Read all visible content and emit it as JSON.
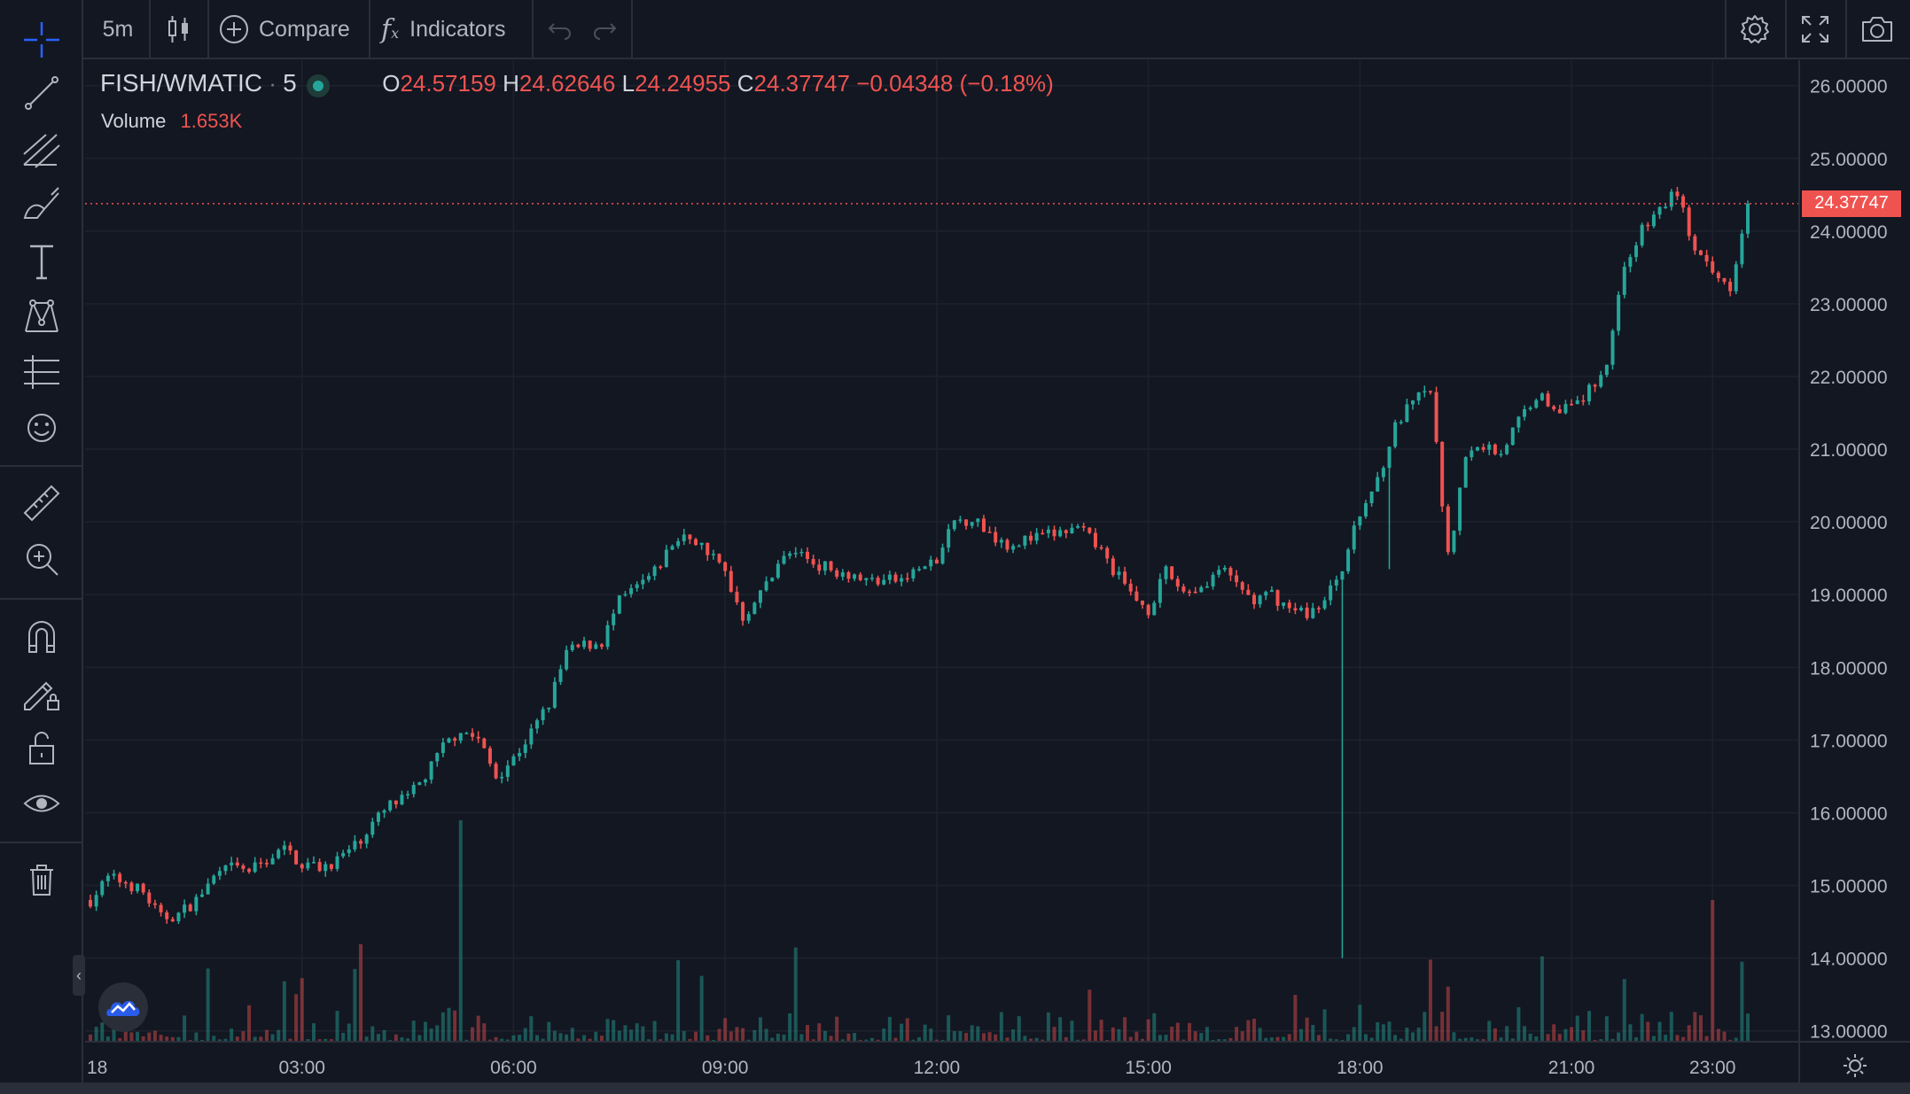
{
  "toolbar": {
    "interval": "5m",
    "compare_label": "Compare",
    "indicators_label": "Indicators"
  },
  "legend": {
    "symbol": "FISH/WMATIC",
    "separator": "·",
    "interval": "5",
    "open_prefix": "O",
    "open": "24.57159",
    "high_prefix": "H",
    "high": "24.62646",
    "low_prefix": "L",
    "low": "24.24955",
    "close_prefix": "C",
    "close": "24.37747",
    "change": "−0.04348 (−0.18%)",
    "volume_label": "Volume",
    "volume": "1.653K"
  },
  "price_axis": {
    "current_label": "24.37747",
    "current_value": 24.37747
  },
  "colors": {
    "up": "#26a69a",
    "down": "#ef5350",
    "background": "#131722",
    "grid": "#1e222d",
    "text": "#b2b5be"
  },
  "chart_data": {
    "type": "candlestick",
    "symbol": "FISH/WMATIC",
    "interval": "5m",
    "ylim": [
      12.85,
      26.35
    ],
    "y_ticks": [
      13,
      14,
      15,
      16,
      17,
      18,
      19,
      20,
      21,
      22,
      23,
      24,
      25,
      26
    ],
    "y_tick_labels": [
      "13.00000",
      "14.00000",
      "15.00000",
      "16.00000",
      "17.00000",
      "18.00000",
      "19.00000",
      "20.00000",
      "21.00000",
      "22.00000",
      "23.00000",
      "24.00000",
      "25.00000",
      "26.00000"
    ],
    "x_tick_labels": [
      "18",
      "03:00",
      "06:00",
      "09:00",
      "12:00",
      "15:00",
      "18:00",
      "21:00",
      "23:00"
    ],
    "x_tick_hours": [
      0,
      3,
      6,
      9,
      12,
      15,
      18,
      21,
      23
    ],
    "x_hour_range": [
      0,
      23.55
    ],
    "grid": true,
    "current_price": 24.37747,
    "price_points_hours": [
      0,
      0.25,
      0.5,
      0.75,
      1.0,
      1.25,
      1.5,
      1.75,
      2.0,
      2.25,
      2.5,
      2.75,
      3.0,
      3.25,
      3.5,
      3.75,
      4.0,
      4.25,
      4.5,
      4.75,
      5.0,
      5.25,
      5.5,
      5.75,
      6.0,
      6.25,
      6.5,
      6.75,
      7.0,
      7.25,
      7.5,
      7.75,
      8.0,
      8.25,
      8.5,
      8.75,
      9.0,
      9.25,
      9.5,
      9.75,
      10.0,
      10.25,
      10.5,
      10.75,
      11.0,
      11.25,
      11.5,
      11.75,
      12.0,
      12.25,
      12.5,
      12.75,
      13.0,
      13.25,
      13.5,
      13.75,
      14.0,
      14.25,
      14.5,
      14.75,
      15.0,
      15.25,
      15.5,
      15.75,
      16.0,
      16.25,
      16.5,
      16.75,
      17.0,
      17.25,
      17.5,
      17.75,
      18.0,
      18.25,
      18.5,
      18.75,
      19.0,
      19.25,
      19.5,
      19.75,
      20.0,
      20.25,
      20.5,
      20.75,
      21.0,
      21.25,
      21.5,
      21.75,
      22.0,
      22.25,
      22.5,
      22.75,
      23.0,
      23.25,
      23.5
    ],
    "close_values": [
      14.8,
      15.1,
      15.05,
      14.9,
      14.55,
      14.6,
      14.8,
      15.1,
      15.25,
      15.2,
      15.35,
      15.5,
      15.3,
      15.25,
      15.35,
      15.55,
      15.85,
      16.1,
      16.2,
      16.5,
      16.9,
      17.15,
      17.0,
      16.5,
      16.75,
      17.1,
      17.5,
      18.2,
      18.3,
      18.35,
      18.9,
      19.1,
      19.3,
      19.7,
      19.8,
      19.6,
      19.3,
      18.7,
      19.0,
      19.45,
      19.6,
      19.45,
      19.35,
      19.3,
      19.2,
      19.2,
      19.2,
      19.35,
      19.45,
      20.0,
      20.05,
      19.85,
      19.7,
      19.75,
      19.8,
      19.85,
      19.9,
      19.7,
      19.35,
      19.0,
      18.8,
      19.3,
      19.05,
      19.1,
      19.35,
      19.15,
      18.9,
      19.0,
      18.8,
      18.75,
      18.9,
      19.4,
      20.1,
      20.6,
      21.3,
      21.65,
      21.8,
      19.5,
      20.9,
      21.05,
      20.95,
      21.4,
      21.75,
      21.6,
      21.55,
      21.8,
      22.2,
      23.55,
      24.0,
      24.3,
      24.55,
      23.7,
      23.4,
      23.25,
      24.4
    ]
  }
}
